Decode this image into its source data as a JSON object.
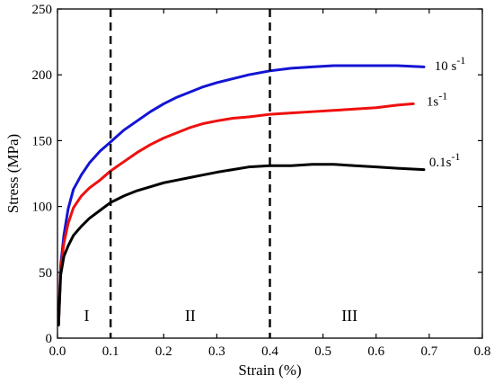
{
  "chart_data": {
    "type": "line",
    "xlabel": "Strain (%)",
    "ylabel": "Stress (MPa)",
    "xlim": [
      0,
      0.8
    ],
    "ylim": [
      0,
      250
    ],
    "xticks": [
      0.0,
      0.1,
      0.2,
      0.3,
      0.4,
      0.5,
      0.6,
      0.7,
      0.8
    ],
    "xtick_labels": [
      "0.0",
      "0.1",
      "0.2",
      "0.3",
      "0.4",
      "0.5",
      "0.6",
      "0.7",
      "0.8"
    ],
    "yticks": [
      0,
      50,
      100,
      150,
      200,
      250
    ],
    "ytick_labels": [
      "0",
      "50",
      "100",
      "150",
      "200",
      "250"
    ],
    "grid": false,
    "vlines": [
      0.1,
      0.4
    ],
    "region_labels": [
      {
        "text": "I",
        "x": 0.055,
        "y": 17
      },
      {
        "text": "II",
        "x": 0.25,
        "y": 17
      },
      {
        "text": "III",
        "x": 0.55,
        "y": 17
      }
    ],
    "series": [
      {
        "name": "10 s-1",
        "label_main": "10 s",
        "label_exp": "-1",
        "color": "#1414d4",
        "label_at": [
          0.71,
          207
        ],
        "x": [
          0.002,
          0.006,
          0.012,
          0.02,
          0.03,
          0.045,
          0.06,
          0.08,
          0.1,
          0.125,
          0.15,
          0.175,
          0.2,
          0.225,
          0.25,
          0.275,
          0.3,
          0.33,
          0.36,
          0.4,
          0.44,
          0.48,
          0.52,
          0.56,
          0.6,
          0.64,
          0.69
        ],
        "y": [
          10,
          55,
          78,
          98,
          113,
          124,
          133,
          142,
          149,
          158,
          165,
          172,
          178,
          183,
          187,
          191,
          194,
          197,
          200,
          203,
          205,
          206,
          207,
          207,
          207,
          207,
          206
        ]
      },
      {
        "name": "1s-1",
        "label_main": "1s",
        "label_exp": "-1",
        "color": "#ee1010",
        "label_at": [
          0.695,
          180
        ],
        "x": [
          0.002,
          0.006,
          0.012,
          0.02,
          0.03,
          0.045,
          0.06,
          0.08,
          0.1,
          0.125,
          0.15,
          0.175,
          0.2,
          0.225,
          0.25,
          0.275,
          0.3,
          0.33,
          0.36,
          0.4,
          0.44,
          0.48,
          0.52,
          0.56,
          0.6,
          0.64,
          0.67
        ],
        "y": [
          10,
          52,
          72,
          87,
          99,
          108,
          114,
          120,
          127,
          134,
          141,
          147,
          152,
          156,
          160,
          163,
          165,
          167,
          168,
          170,
          171,
          172,
          173,
          174,
          175,
          177,
          178
        ]
      },
      {
        "name": "0.1s-1",
        "label_main": "0.1s",
        "label_exp": "-1",
        "color": "#000000",
        "label_at": [
          0.7,
          134
        ],
        "x": [
          0.002,
          0.006,
          0.012,
          0.02,
          0.03,
          0.045,
          0.06,
          0.08,
          0.1,
          0.125,
          0.15,
          0.175,
          0.2,
          0.225,
          0.25,
          0.275,
          0.3,
          0.33,
          0.36,
          0.4,
          0.44,
          0.48,
          0.52,
          0.56,
          0.6,
          0.64,
          0.69
        ],
        "y": [
          10,
          48,
          62,
          70,
          78,
          85,
          91,
          97,
          103,
          108,
          112,
          115,
          118,
          120,
          122,
          124,
          126,
          128,
          130,
          131,
          131,
          132,
          132,
          131,
          130,
          129,
          128
        ]
      }
    ]
  }
}
